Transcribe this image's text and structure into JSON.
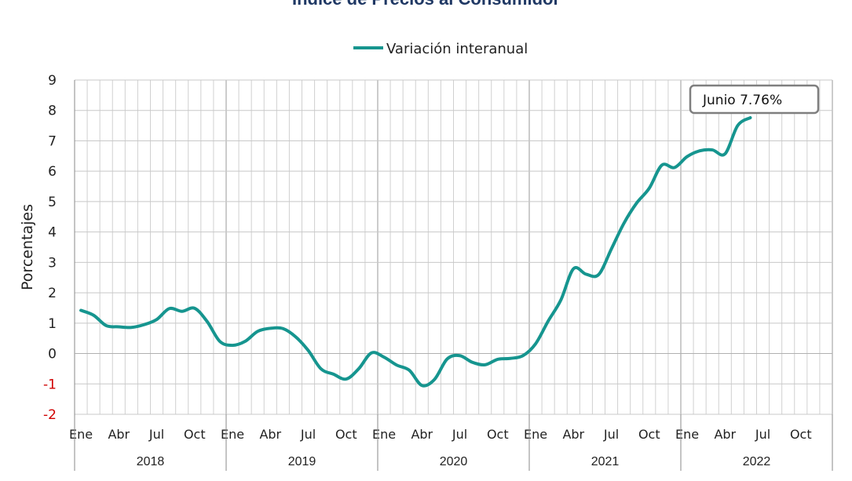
{
  "chart_data": {
    "type": "line",
    "title": "Índice de Precios al Consumidor",
    "ylabel": "Porcentajes",
    "xlabel": "",
    "ylim": [
      -2,
      9
    ],
    "yticks": [
      -2,
      -1,
      0,
      1,
      2,
      3,
      4,
      5,
      6,
      7,
      8,
      9
    ],
    "negative_tick_color": "#d00000",
    "grid": true,
    "legend_position": "top-center",
    "x": [
      "2018-01",
      "2018-02",
      "2018-03",
      "2018-04",
      "2018-05",
      "2018-06",
      "2018-07",
      "2018-08",
      "2018-09",
      "2018-10",
      "2018-11",
      "2018-12",
      "2019-01",
      "2019-02",
      "2019-03",
      "2019-04",
      "2019-05",
      "2019-06",
      "2019-07",
      "2019-08",
      "2019-09",
      "2019-10",
      "2019-11",
      "2019-12",
      "2020-01",
      "2020-02",
      "2020-03",
      "2020-04",
      "2020-05",
      "2020-06",
      "2020-07",
      "2020-08",
      "2020-09",
      "2020-10",
      "2020-11",
      "2020-12",
      "2021-01",
      "2021-02",
      "2021-03",
      "2021-04",
      "2021-05",
      "2021-06",
      "2021-07",
      "2021-08",
      "2021-09",
      "2021-10",
      "2021-11",
      "2021-12",
      "2022-01",
      "2022-02",
      "2022-03",
      "2022-04",
      "2022-05",
      "2022-06"
    ],
    "month_tick_labels": [
      "Ene",
      "Abr",
      "Jul",
      "Oct"
    ],
    "month_tick_positions": [
      1,
      4,
      7,
      10
    ],
    "years": [
      "2018",
      "2019",
      "2020",
      "2021",
      "2022"
    ],
    "series": [
      {
        "name": "Variación interanual",
        "color": "#16958f",
        "values": [
          1.42,
          1.26,
          0.92,
          0.88,
          0.86,
          0.95,
          1.12,
          1.48,
          1.39,
          1.49,
          1.05,
          0.4,
          0.27,
          0.4,
          0.73,
          0.83,
          0.82,
          0.55,
          0.1,
          -0.5,
          -0.68,
          -0.84,
          -0.5,
          0.02,
          -0.12,
          -0.38,
          -0.55,
          -1.05,
          -0.85,
          -0.18,
          -0.07,
          -0.29,
          -0.37,
          -0.19,
          -0.16,
          -0.07,
          0.32,
          1.07,
          1.76,
          2.79,
          2.61,
          2.6,
          3.44,
          4.29,
          4.95,
          5.44,
          6.2,
          6.12,
          6.48,
          6.67,
          6.7,
          6.57,
          7.5,
          7.76
        ]
      }
    ],
    "annotations": [
      {
        "text": "Junio 7.76%"
      }
    ]
  }
}
